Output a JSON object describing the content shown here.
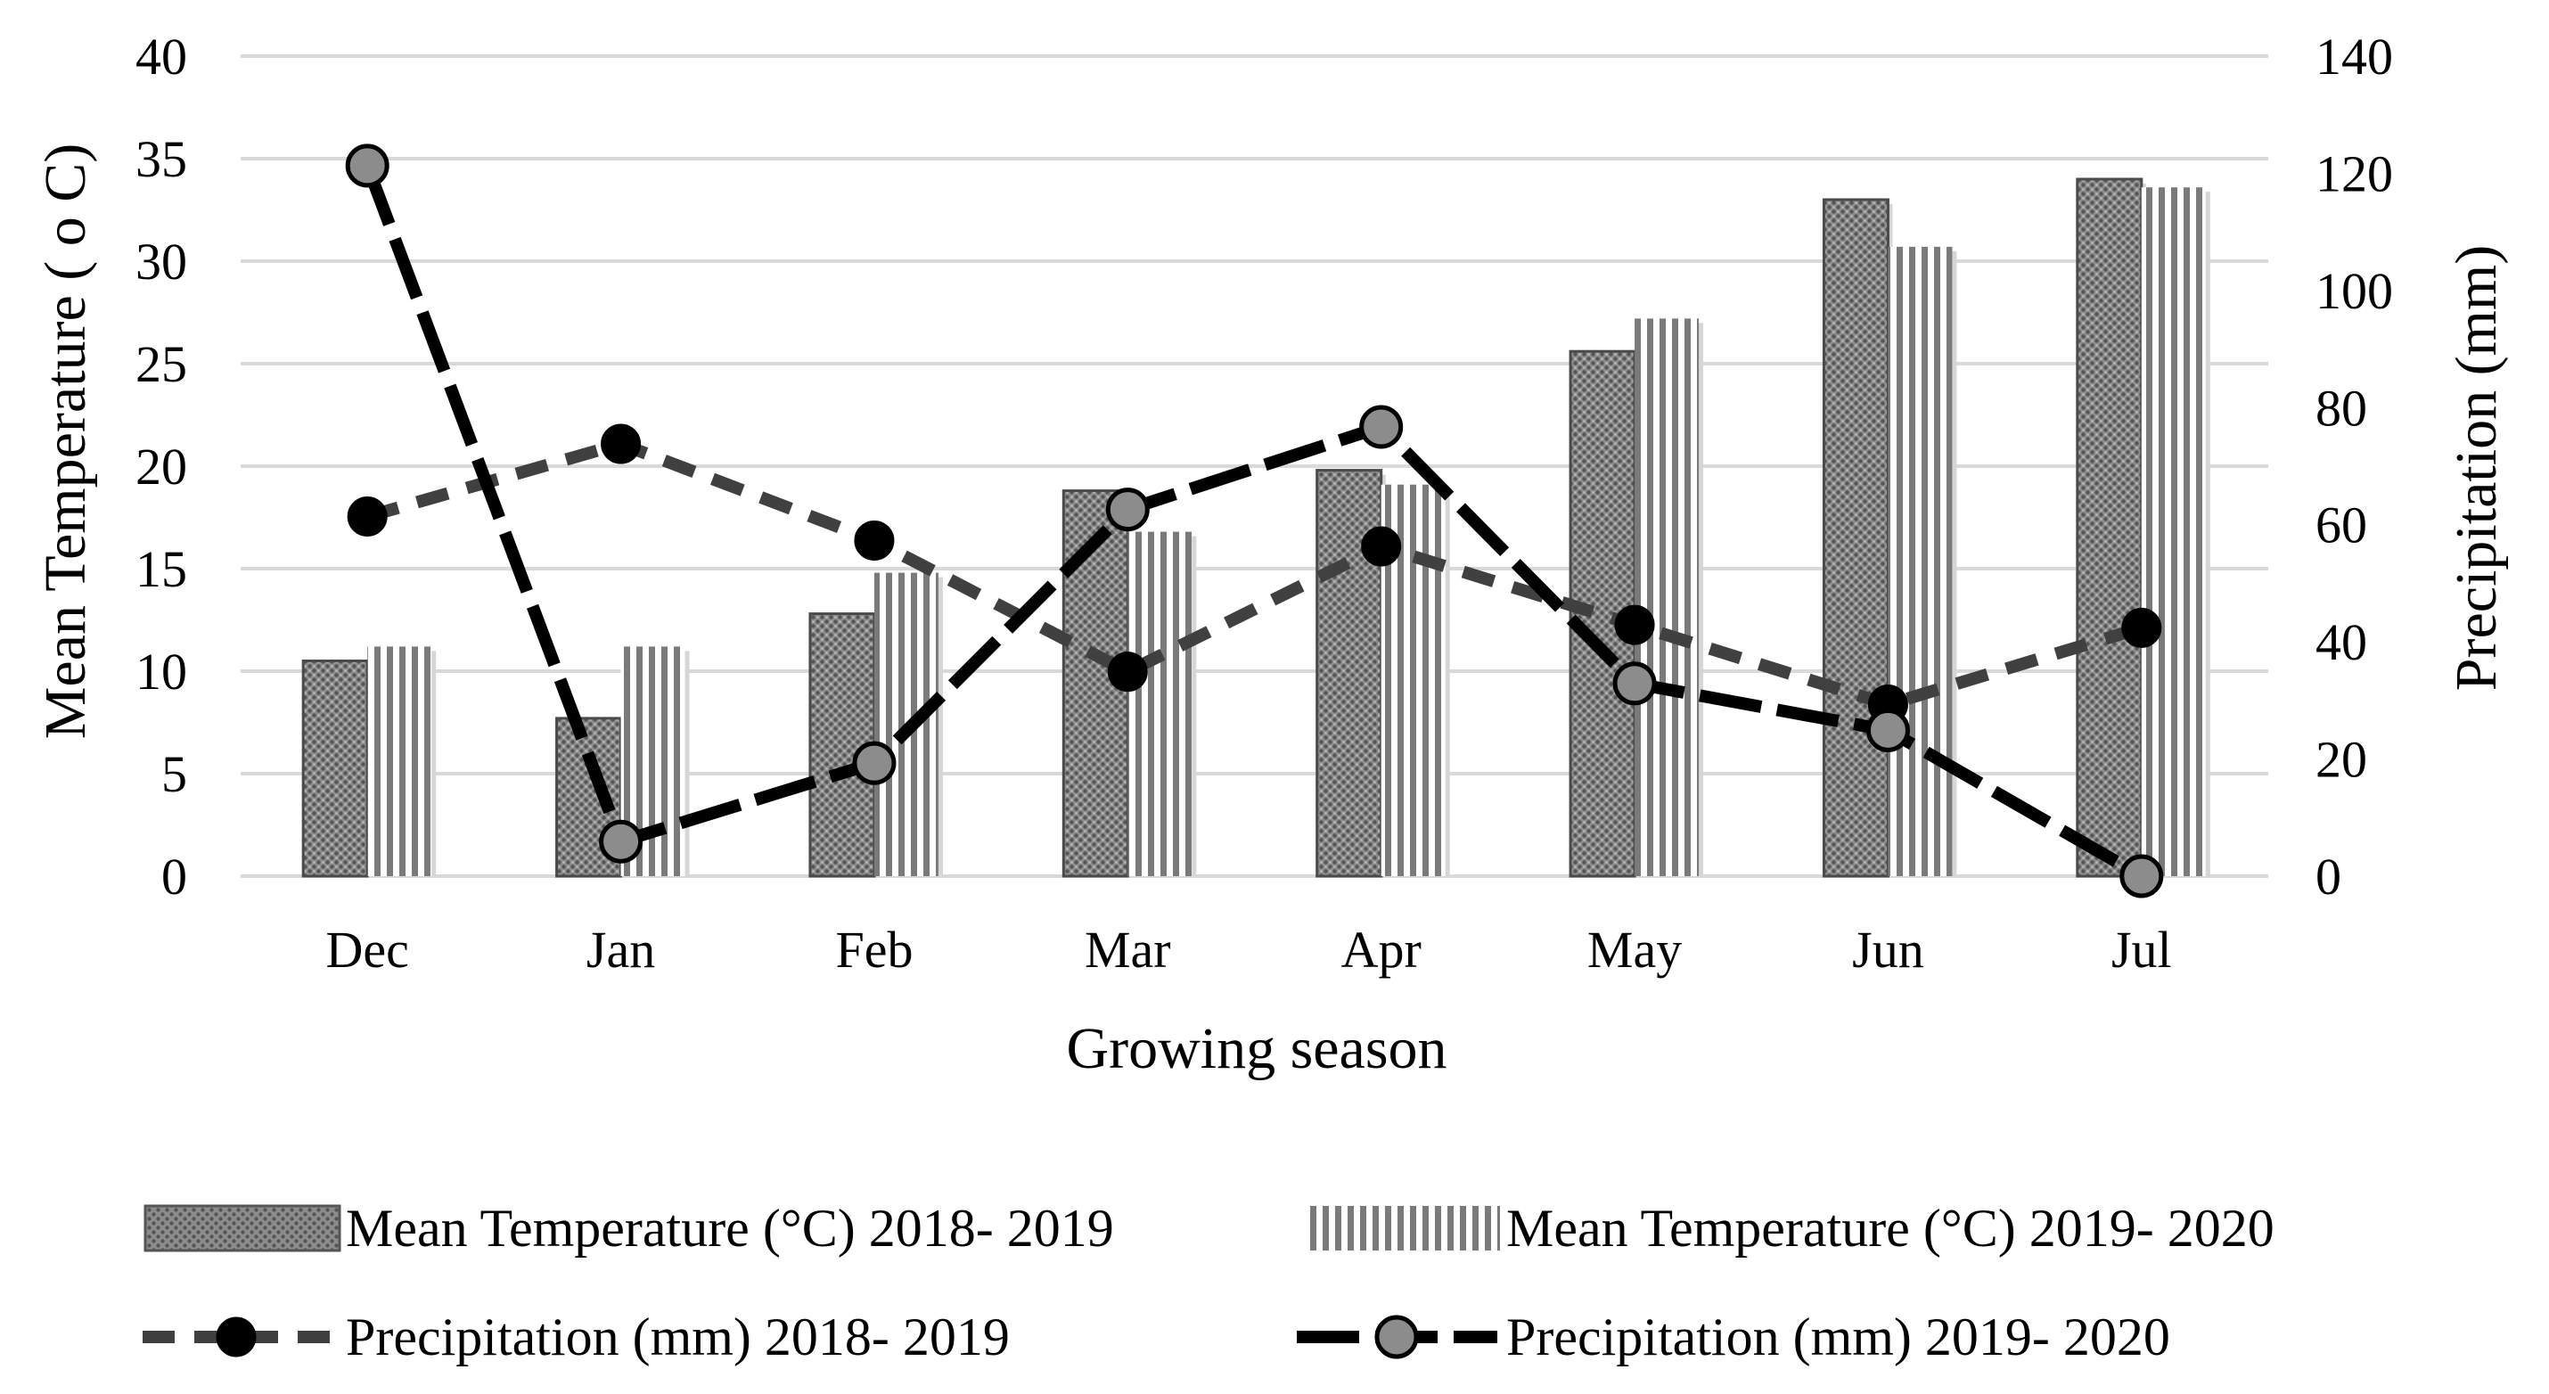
{
  "chart_data": {
    "type": "bar",
    "categories": [
      "Dec",
      "Jan",
      "Feb",
      "Mar",
      "Apr",
      "May",
      "Jun",
      "Jul"
    ],
    "xlabel": "Growing season",
    "ylabel": "Mean Temperature ( o C)",
    "y2label": "Precipitation (mm)",
    "ylim": [
      0,
      40
    ],
    "y2lim": [
      0,
      140
    ],
    "yticks": [
      "0",
      "5",
      "10",
      "15",
      "20",
      "25",
      "30",
      "35",
      "40"
    ],
    "y2ticks": [
      "0",
      "20",
      "40",
      "60",
      "80",
      "100",
      "120",
      "140"
    ],
    "grid": true,
    "legend_position": "bottom",
    "series": [
      {
        "name": "Mean Temperature  (°C) 2018- 2019",
        "type": "bar",
        "axis": "left",
        "values": [
          10.5,
          7.7,
          12.8,
          18.8,
          19.8,
          25.6,
          33.0,
          34.0
        ]
      },
      {
        "name": "Mean Temperature  (°C) 2019- 2020",
        "type": "bar",
        "axis": "left",
        "values": [
          11.2,
          11.2,
          14.8,
          16.8,
          19.1,
          27.2,
          30.7,
          33.6
        ]
      },
      {
        "name": "Precipitation (mm) 2018- 2019",
        "type": "line",
        "axis": "right",
        "values": [
          61.4,
          73.8,
          57.3,
          34.9,
          56.3,
          42.9,
          29.3,
          42.4
        ]
      },
      {
        "name": "Precipitation (mm) 2019- 2020",
        "type": "line",
        "axis": "right",
        "values": [
          121.3,
          5.9,
          19.3,
          62.6,
          76.7,
          32.9,
          24.9,
          0.0
        ]
      }
    ]
  }
}
